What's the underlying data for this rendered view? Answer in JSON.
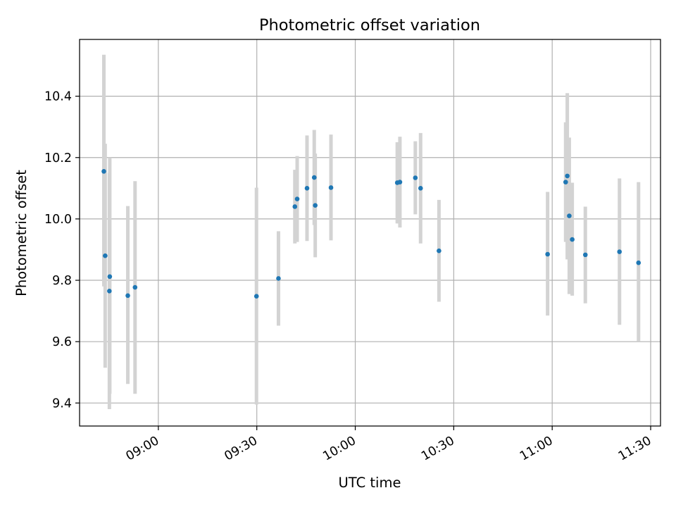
{
  "chart_data": {
    "type": "scatter",
    "title": "Photometric offset variation",
    "xlabel": "UTC time",
    "ylabel": "Photometric offset",
    "x_is_time": true,
    "xlim": [
      "08:36",
      "11:33"
    ],
    "ylim": [
      9.325,
      10.585
    ],
    "x_ticks": [
      {
        "value": "09:00",
        "label": "09:00"
      },
      {
        "value": "09:30",
        "label": "09:30"
      },
      {
        "value": "10:00",
        "label": "10:00"
      },
      {
        "value": "10:30",
        "label": "10:30"
      },
      {
        "value": "11:00",
        "label": "11:00"
      },
      {
        "value": "11:30",
        "label": "11:30"
      }
    ],
    "y_ticks": [
      {
        "value": 9.4,
        "label": "9.4"
      },
      {
        "value": 9.6,
        "label": "9.6"
      },
      {
        "value": 9.8,
        "label": "9.8"
      },
      {
        "value": 10.0,
        "label": "10.0"
      },
      {
        "value": 10.2,
        "label": "10.2"
      },
      {
        "value": 10.4,
        "label": "10.4"
      }
    ],
    "grid": true,
    "marker_color": "#1f77b4",
    "errorbar_color": "#d3d3d3",
    "points": [
      {
        "x": "08:43:24",
        "y": 10.155,
        "y_low": 9.78,
        "y_high": 10.535
      },
      {
        "x": "08:43:48",
        "y": 9.88,
        "y_low": 9.515,
        "y_high": 10.245
      },
      {
        "x": "08:45:12",
        "y": 9.812,
        "y_low": 9.43,
        "y_high": 10.2
      },
      {
        "x": "08:45:05",
        "y": 9.765,
        "y_low": 9.38,
        "y_high": 10.15
      },
      {
        "x": "08:50:42",
        "y": 9.75,
        "y_low": 9.462,
        "y_high": 10.042
      },
      {
        "x": "08:52:54",
        "y": 9.777,
        "y_low": 9.43,
        "y_high": 10.123
      },
      {
        "x": "09:29:54",
        "y": 9.748,
        "y_low": 9.395,
        "y_high": 10.102
      },
      {
        "x": "09:36:36",
        "y": 9.806,
        "y_low": 9.652,
        "y_high": 9.96
      },
      {
        "x": "09:41:36",
        "y": 10.04,
        "y_low": 9.92,
        "y_high": 10.16
      },
      {
        "x": "09:42:18",
        "y": 10.065,
        "y_low": 9.925,
        "y_high": 10.205
      },
      {
        "x": "09:45:18",
        "y": 10.1,
        "y_low": 9.928,
        "y_high": 10.272
      },
      {
        "x": "09:47:30",
        "y": 10.135,
        "y_low": 9.98,
        "y_high": 10.29
      },
      {
        "x": "09:47:48",
        "y": 10.044,
        "y_low": 9.875,
        "y_high": 10.213
      },
      {
        "x": "09:52:36",
        "y": 10.102,
        "y_low": 9.93,
        "y_high": 10.275
      },
      {
        "x": "10:12:48",
        "y": 10.118,
        "y_low": 9.985,
        "y_high": 10.25
      },
      {
        "x": "10:13:36",
        "y": 10.12,
        "y_low": 9.972,
        "y_high": 10.268
      },
      {
        "x": "10:18:18",
        "y": 10.134,
        "y_low": 10.015,
        "y_high": 10.253
      },
      {
        "x": "10:19:54",
        "y": 10.1,
        "y_low": 9.92,
        "y_high": 10.28
      },
      {
        "x": "10:25:30",
        "y": 9.896,
        "y_low": 9.73,
        "y_high": 10.062
      },
      {
        "x": "10:58:36",
        "y": 9.885,
        "y_low": 9.685,
        "y_high": 10.088
      },
      {
        "x": "11:04:06",
        "y": 10.12,
        "y_low": 9.925,
        "y_high": 10.315
      },
      {
        "x": "11:04:36",
        "y": 10.14,
        "y_low": 9.868,
        "y_high": 10.41
      },
      {
        "x": "11:05:12",
        "y": 10.01,
        "y_low": 9.755,
        "y_high": 10.265
      },
      {
        "x": "11:06:06",
        "y": 9.933,
        "y_low": 9.75,
        "y_high": 10.118
      },
      {
        "x": "11:10:06",
        "y": 9.883,
        "y_low": 9.725,
        "y_high": 10.04
      },
      {
        "x": "11:20:30",
        "y": 9.893,
        "y_low": 9.655,
        "y_high": 10.132
      },
      {
        "x": "11:26:18",
        "y": 9.857,
        "y_low": 9.6,
        "y_high": 10.12
      }
    ]
  }
}
